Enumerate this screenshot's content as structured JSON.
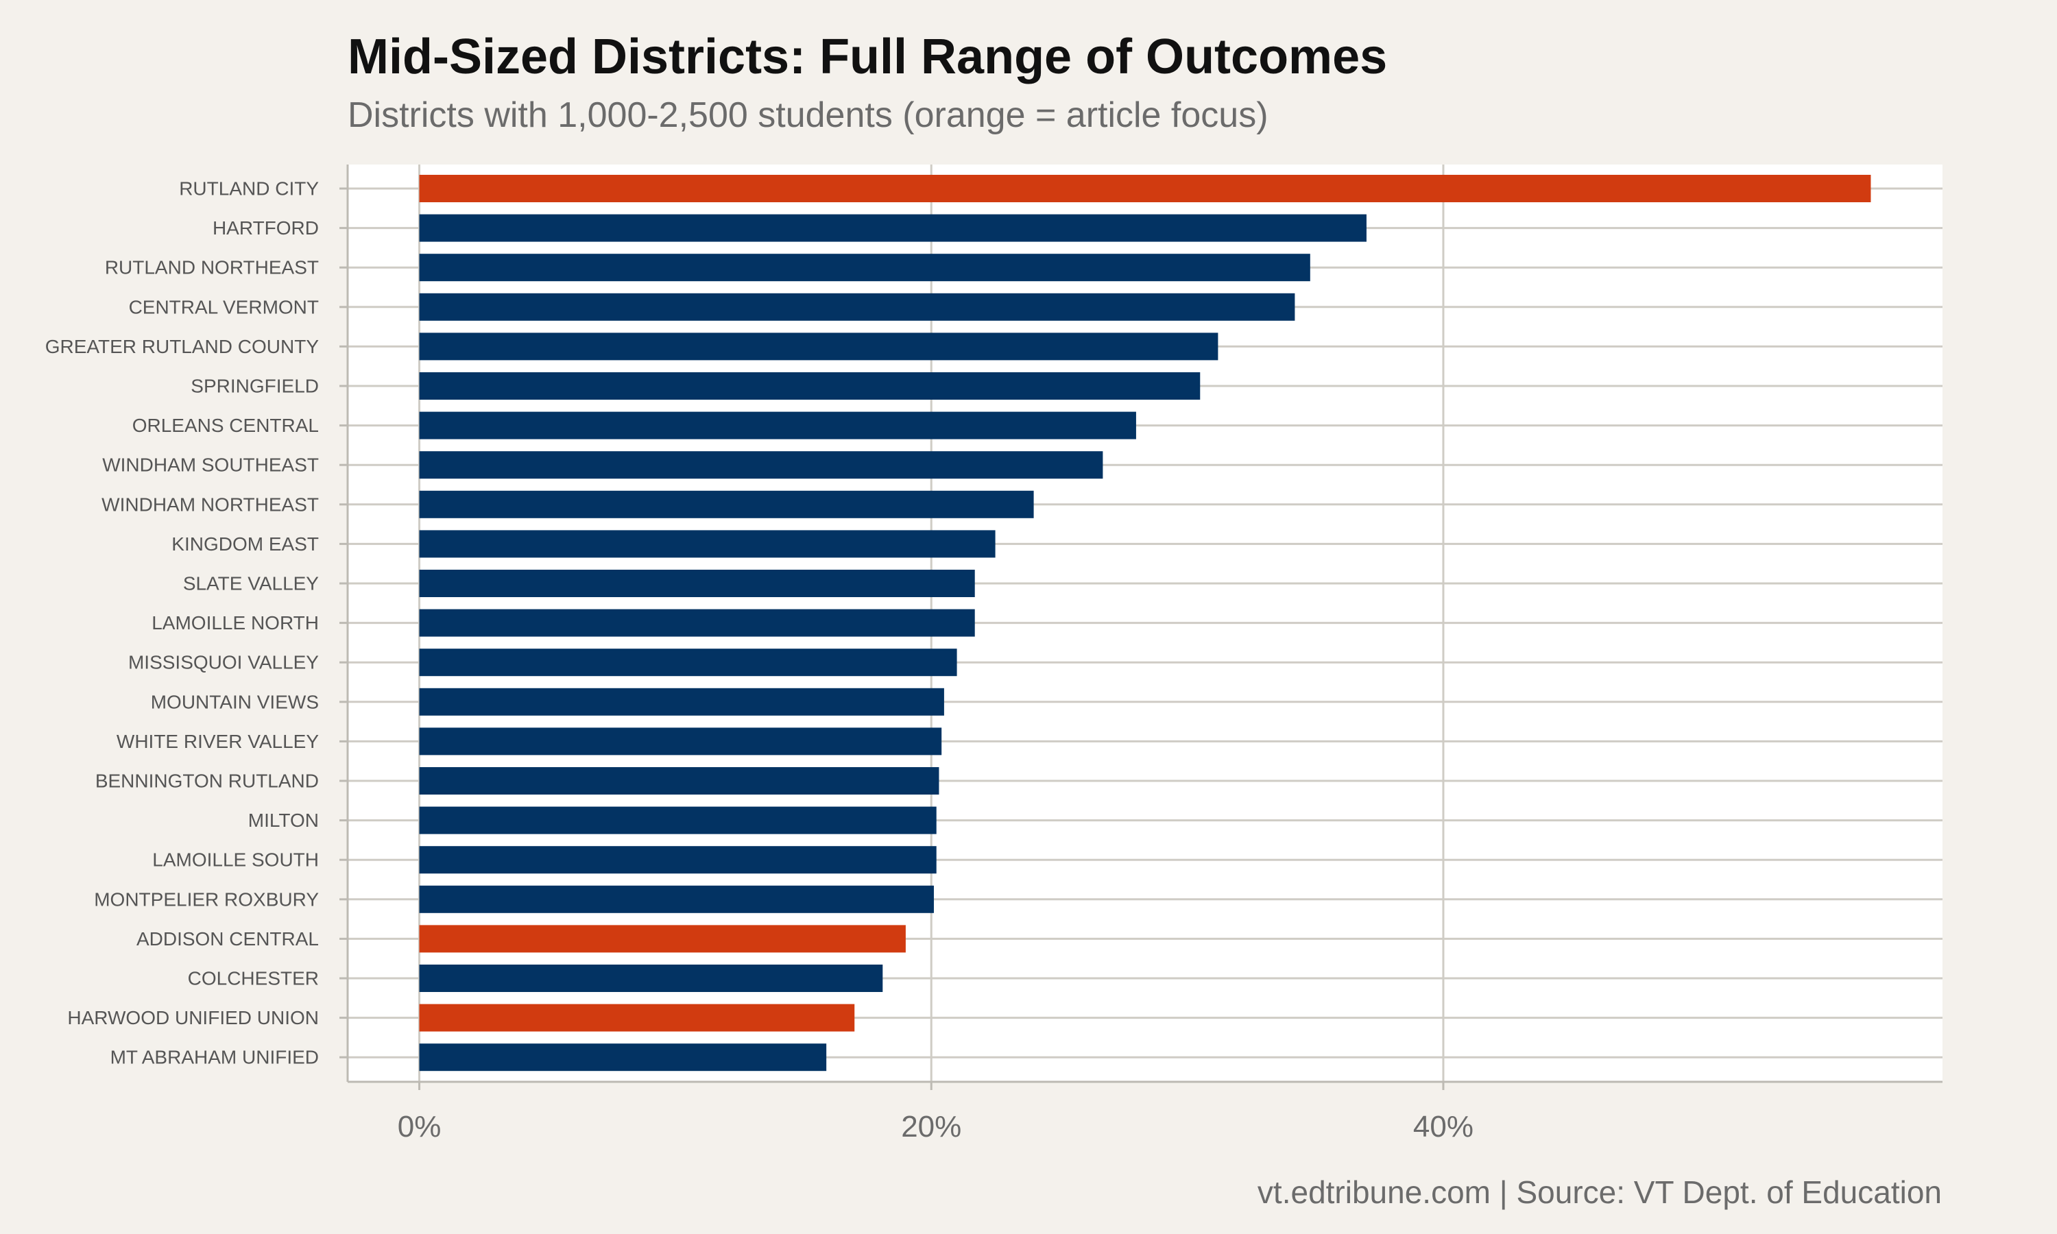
{
  "chart_data": {
    "type": "bar",
    "orientation": "horizontal",
    "title": "Mid-Sized Districts: Full Range of Outcomes",
    "subtitle": "Districts with 1,000-2,500 students (orange = article focus)",
    "caption": "vt.edtribune.com | Source: VT Dept. of Education",
    "categories": [
      "RUTLAND CITY",
      "HARTFORD",
      "RUTLAND NORTHEAST",
      "CENTRAL VERMONT",
      "GREATER RUTLAND COUNTY",
      "SPRINGFIELD",
      "ORLEANS CENTRAL",
      "WINDHAM SOUTHEAST",
      "WINDHAM NORTHEAST",
      "KINGDOM EAST",
      "SLATE VALLEY",
      "LAMOILLE NORTH",
      "MISSISQUOI VALLEY",
      "MOUNTAIN VIEWS",
      "WHITE RIVER VALLEY",
      "BENNINGTON RUTLAND",
      "MILTON",
      "LAMOILLE SOUTH",
      "MONTPELIER ROXBURY",
      "ADDISON CENTRAL",
      "COLCHESTER",
      "HARWOOD UNIFIED UNION",
      "MT ABRAHAM UNIFIED"
    ],
    "values": [
      56.7,
      37.0,
      34.8,
      34.2,
      31.2,
      30.5,
      28.0,
      26.7,
      24.0,
      22.5,
      21.7,
      21.7,
      21.0,
      20.5,
      20.4,
      20.3,
      20.2,
      20.2,
      20.1,
      19.0,
      18.1,
      17.0,
      15.9
    ],
    "highlighted": [
      true,
      false,
      false,
      false,
      false,
      false,
      false,
      false,
      false,
      false,
      false,
      false,
      false,
      false,
      false,
      false,
      false,
      false,
      false,
      true,
      false,
      true,
      false
    ],
    "colors": {
      "highlight": "#d13b10",
      "default": "#033363",
      "grid": "#cfccc5",
      "axis": "#bdbab3",
      "panel": "#ffffff",
      "background": "#f4f1ec"
    },
    "xticks": [
      "0%",
      "20%",
      "40%"
    ],
    "xtick_values": [
      0,
      20,
      40
    ],
    "xlim": [
      -2.8,
      59.5
    ],
    "grid": true,
    "legend": "none"
  }
}
